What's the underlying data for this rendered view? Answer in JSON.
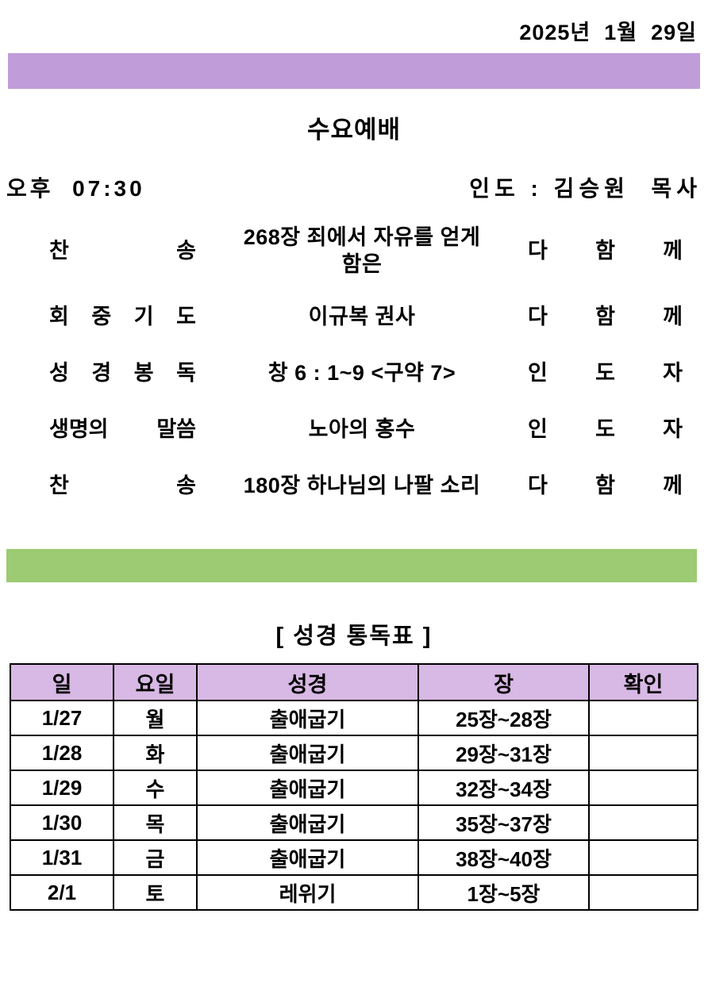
{
  "page": {
    "date": "2025년  1월  29일"
  },
  "colors": {
    "purple_bar": "#C09CD8",
    "header_purple": "#D8B8E4",
    "green_bar": "#9DCB74"
  },
  "service": {
    "title": "수요예배",
    "time": "오후  07:30",
    "leader": "인도 : 김승원  목사",
    "rows": [
      {
        "label": "찬 송",
        "lines": [
          "268장 죄에서 자유를 얻게",
          "함은"
        ],
        "performer": "다 함 께"
      },
      {
        "label": "회 중 기 도",
        "lines": [
          "이규복  권사"
        ],
        "performer": "다 함 께"
      },
      {
        "label": "성 경 봉 독",
        "lines": [
          "창 6 : 1~9 <구약 7>"
        ],
        "performer": "인 도 자"
      },
      {
        "label": "생명의 말씀",
        "lines": [
          "노아의 홍수"
        ],
        "performer": "인 도 자"
      },
      {
        "label": "찬 송",
        "lines": [
          "180장 하나님의  나팔 소리"
        ],
        "performer": "다 함 께"
      }
    ]
  },
  "toc": {
    "title": "[ 성경 통독표 ]",
    "headers": [
      "일",
      "요일",
      "성경",
      "장",
      "확인"
    ],
    "rows": [
      {
        "date": "1/27",
        "day": "월",
        "book": "출애굽기",
        "chapters": "25장~28장",
        "check": ""
      },
      {
        "date": "1/28",
        "day": "화",
        "book": "출애굽기",
        "chapters": "29장~31장",
        "check": ""
      },
      {
        "date": "1/29",
        "day": "수",
        "book": "출애굽기",
        "chapters": "32장~34장",
        "check": ""
      },
      {
        "date": "1/30",
        "day": "목",
        "book": "출애굽기",
        "chapters": "35장~37장",
        "check": ""
      },
      {
        "date": "1/31",
        "day": "금",
        "book": "출애굽기",
        "chapters": "38장~40장",
        "check": ""
      },
      {
        "date": "2/1",
        "day": "토",
        "book": "레위기",
        "chapters": "1장~5장",
        "check": ""
      }
    ]
  }
}
